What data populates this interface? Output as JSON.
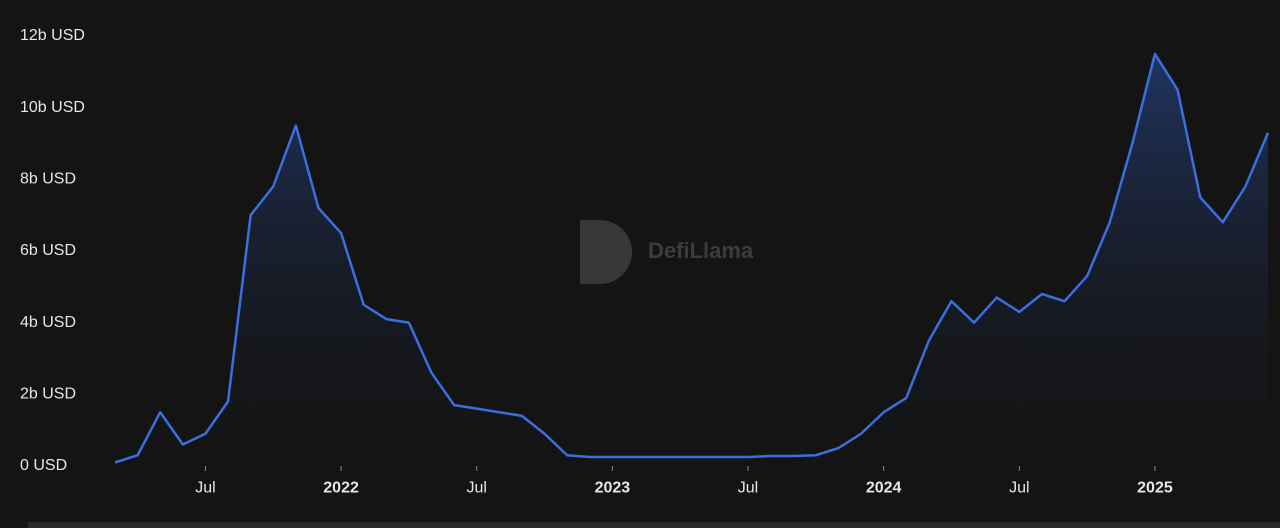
{
  "chart_data": {
    "type": "area",
    "watermark": "DefiLlama",
    "color": "#3a6fe0",
    "x": [
      "2021-03",
      "2021-04",
      "2021-05",
      "2021-06",
      "2021-07",
      "2021-08",
      "2021-09",
      "2021-10",
      "2021-11",
      "2021-12",
      "2022-01",
      "2022-02",
      "2022-03",
      "2022-04",
      "2022-05",
      "2022-06",
      "2022-07",
      "2022-08",
      "2022-09",
      "2022-10",
      "2022-11",
      "2022-12",
      "2023-01",
      "2023-02",
      "2023-03",
      "2023-04",
      "2023-05",
      "2023-06",
      "2023-07",
      "2023-08",
      "2023-09",
      "2023-10",
      "2023-11",
      "2023-12",
      "2024-01",
      "2024-02",
      "2024-03",
      "2024-04",
      "2024-05",
      "2024-06",
      "2024-07",
      "2024-08",
      "2024-09",
      "2024-10",
      "2024-11",
      "2024-12",
      "2025-01",
      "2025-02",
      "2025-03",
      "2025-04",
      "2025-05",
      "2025-06"
    ],
    "values": [
      0.1,
      0.3,
      1.5,
      0.6,
      0.9,
      1.8,
      7.0,
      7.8,
      9.5,
      7.2,
      6.5,
      4.5,
      4.1,
      4.0,
      2.6,
      1.7,
      1.6,
      1.5,
      1.4,
      0.9,
      0.3,
      0.25,
      0.25,
      0.25,
      0.25,
      0.25,
      0.25,
      0.25,
      0.25,
      0.28,
      0.28,
      0.3,
      0.5,
      0.9,
      1.5,
      1.9,
      3.5,
      4.6,
      4.0,
      4.7,
      4.3,
      4.8,
      4.6,
      5.3,
      6.8,
      9.0,
      11.5,
      10.5,
      7.5,
      6.8,
      7.8,
      9.3
    ],
    "xlim": [
      "2021-03",
      "2025-06"
    ],
    "xticks": [
      {
        "value": "2021-07",
        "label": "Jul"
      },
      {
        "value": "2022-01",
        "label": "2022"
      },
      {
        "value": "2022-07",
        "label": "Jul"
      },
      {
        "value": "2023-01",
        "label": "2023"
      },
      {
        "value": "2023-07",
        "label": "Jul"
      },
      {
        "value": "2024-01",
        "label": "2024"
      },
      {
        "value": "2024-07",
        "label": "Jul"
      },
      {
        "value": "2025-01",
        "label": "2025"
      }
    ],
    "ylim": [
      0,
      12
    ],
    "yticks": [
      {
        "value": 0,
        "label": "0 USD"
      },
      {
        "value": 2,
        "label": "2b USD"
      },
      {
        "value": 4,
        "label": "4b USD"
      },
      {
        "value": 6,
        "label": "6b USD"
      },
      {
        "value": 8,
        "label": "8b USD"
      },
      {
        "value": 10,
        "label": "10b USD"
      },
      {
        "value": 12,
        "label": "12b USD"
      }
    ]
  }
}
